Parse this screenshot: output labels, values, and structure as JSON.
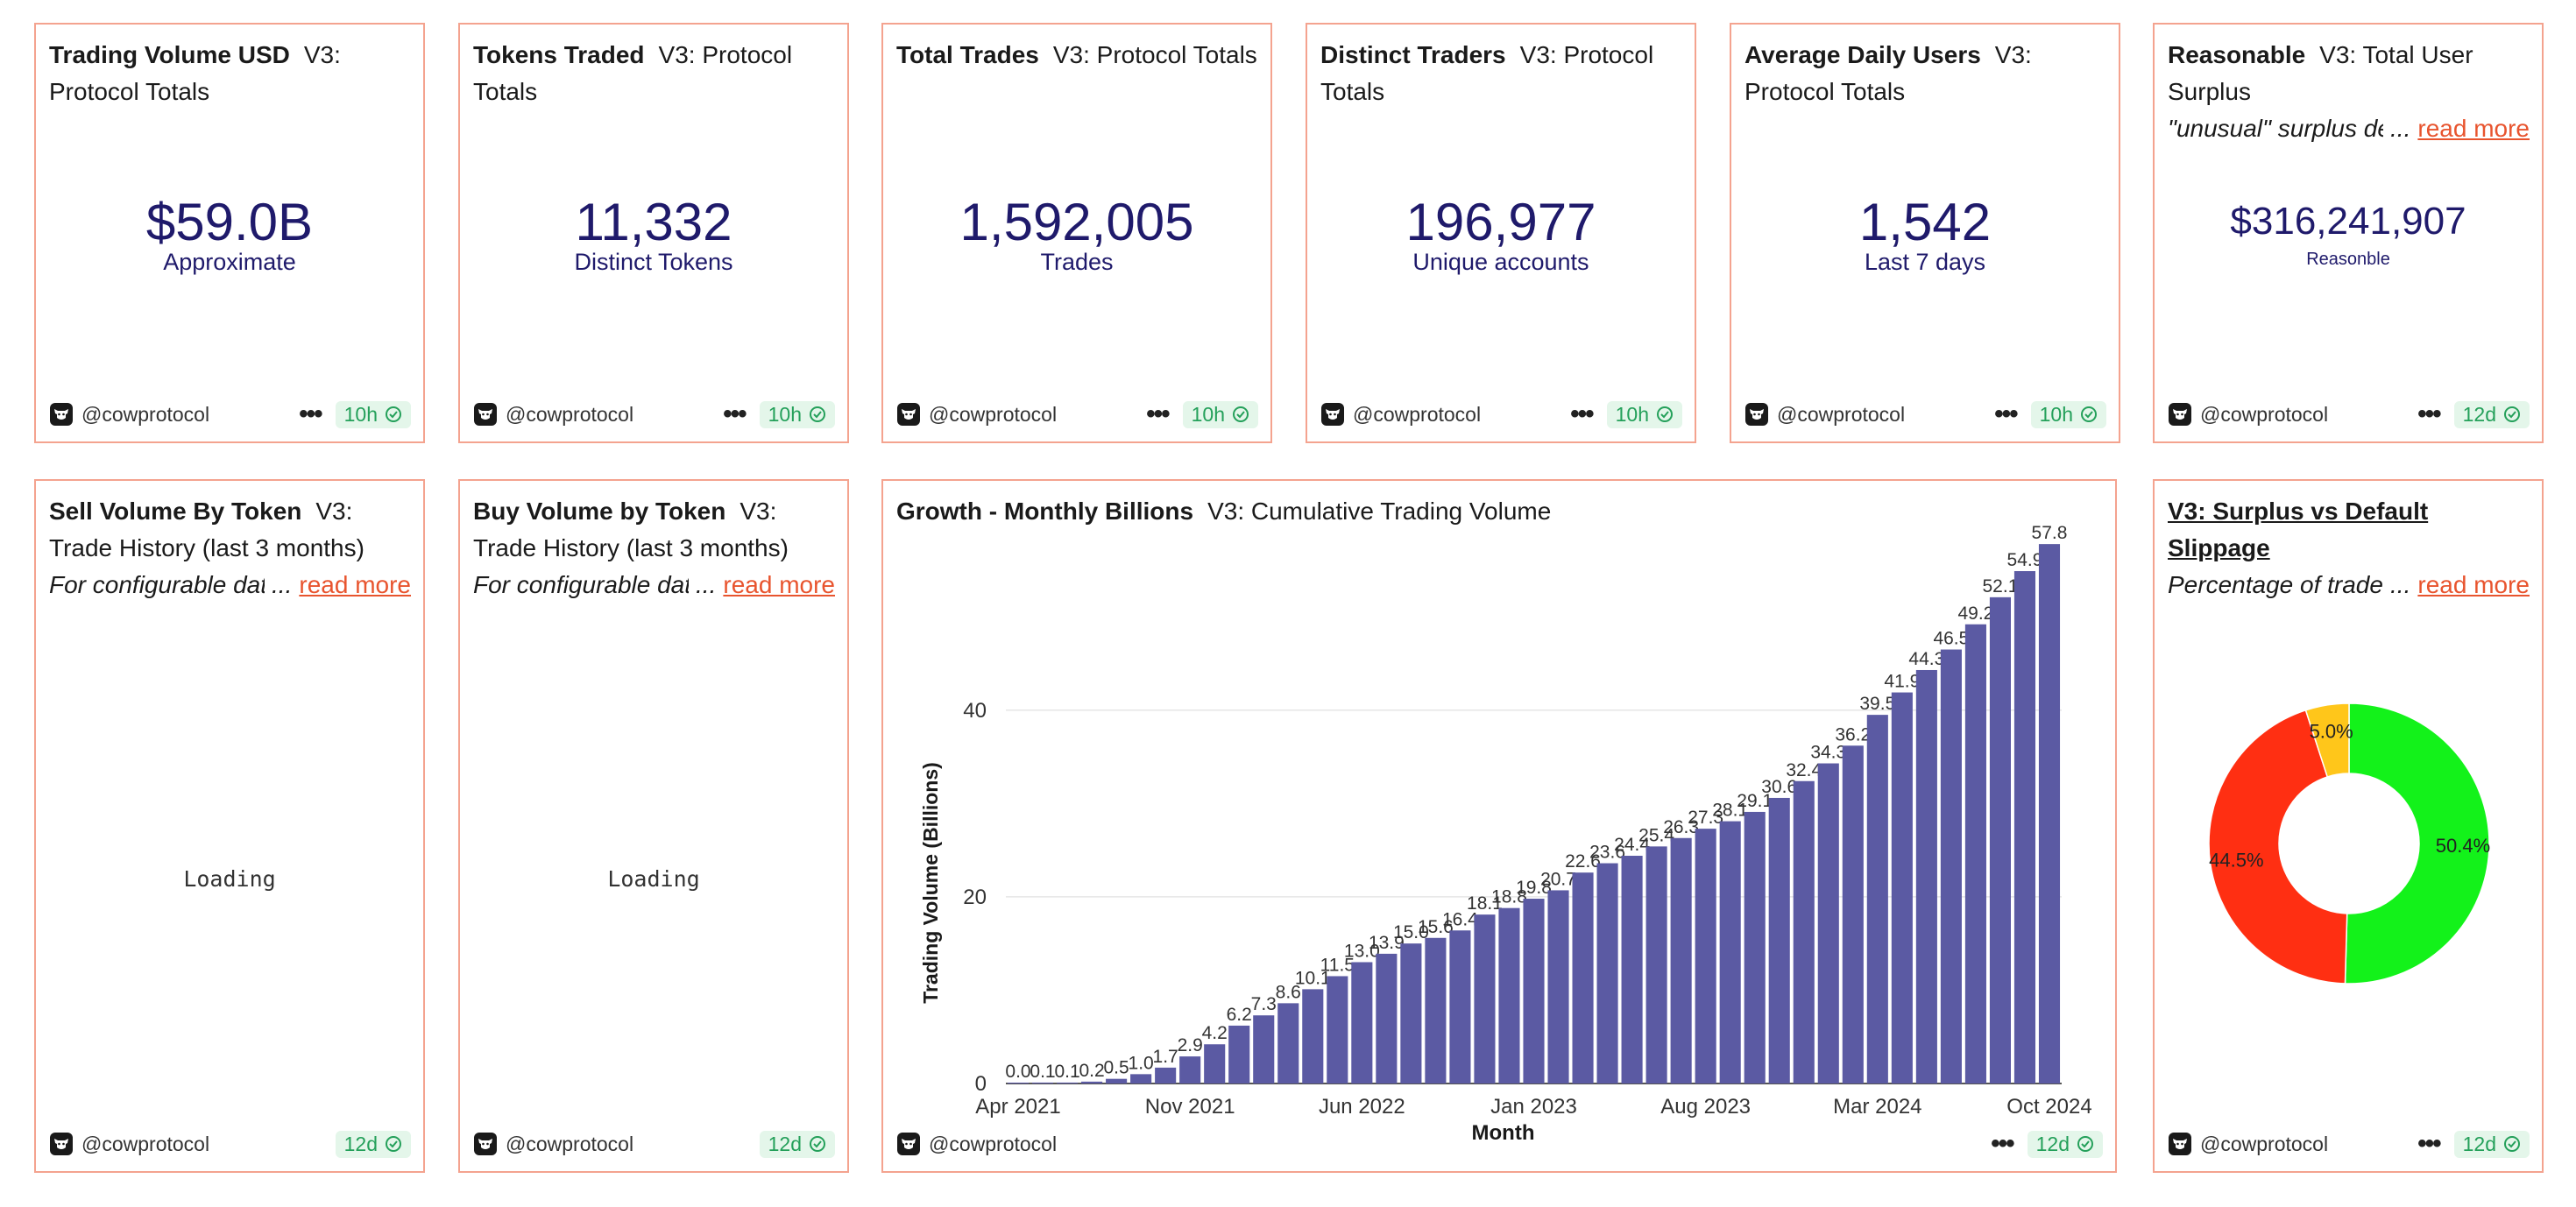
{
  "owner": "@cowprotocol",
  "read_more": "read more",
  "loading_text": "Loading",
  "cards": {
    "trading_volume": {
      "title": "Trading Volume USD",
      "query": "V3: Protocol Totals",
      "value": "$59.0B",
      "label": "Approximate",
      "age": "10h"
    },
    "tokens_traded": {
      "title": "Tokens Traded",
      "query": "V3: Protocol Totals",
      "value": "11,332",
      "label": "Distinct Tokens",
      "age": "10h"
    },
    "total_trades": {
      "title": "Total Trades",
      "query": "V3: Protocol Totals",
      "value": "1,592,005",
      "label": "Trades",
      "age": "10h"
    },
    "distinct_traders": {
      "title": "Distinct Traders",
      "query": "V3: Protocol Totals",
      "value": "196,977",
      "label": "Unique accounts",
      "age": "10h"
    },
    "avg_daily_users": {
      "title": "Average Daily Users",
      "query": "V3: Protocol Totals",
      "value": "1,542",
      "label": "Last 7 days",
      "age": "10h"
    },
    "reasonable": {
      "title": "Reasonable",
      "query": "V3: Total User Surplus",
      "description": "\"unusual\" surplus de",
      "ellipsis": "...",
      "value": "$316,241,907",
      "label": "Reasonble",
      "age": "12d"
    },
    "sell_volume": {
      "title": "Sell Volume By Token",
      "query": "V3: Trade History (last 3 months)",
      "description": "For configurable date",
      "ellipsis": "...",
      "age": "12d"
    },
    "buy_volume": {
      "title": "Buy Volume by Token",
      "query": "V3: Trade History (last 3 months)",
      "description": "For configurable date",
      "ellipsis": "...",
      "age": "12d"
    },
    "growth": {
      "title": "Growth - Monthly Billions",
      "query": "V3: Cumulative Trading Volume",
      "age": "12d"
    },
    "surplus_slippage": {
      "title": "V3: Surplus vs Default Slippage",
      "description": "Percentage of trades",
      "ellipsis": "...",
      "age": "12d"
    }
  },
  "chart_data": [
    {
      "type": "bar",
      "title": "",
      "xlabel": "Month",
      "ylabel": "Trading Volume (Billions)",
      "ylim": [
        0,
        58
      ],
      "yticks": [
        0,
        20,
        40
      ],
      "xticks": [
        "Apr 2021",
        "Nov 2021",
        "Jun 2022",
        "Jan 2023",
        "Aug 2023",
        "Mar 2024",
        "Oct 2024"
      ],
      "xtick_index": [
        0,
        7,
        14,
        21,
        28,
        35,
        42
      ],
      "values": [
        0.0,
        0.1,
        0.1,
        0.2,
        0.5,
        1.0,
        1.7,
        2.9,
        4.2,
        6.2,
        7.3,
        8.6,
        10.1,
        11.5,
        13.0,
        13.9,
        15.0,
        15.6,
        16.4,
        18.1,
        18.8,
        19.8,
        20.7,
        22.6,
        23.6,
        24.4,
        25.4,
        26.3,
        27.3,
        28.1,
        29.1,
        30.6,
        32.4,
        34.3,
        36.2,
        39.5,
        41.9,
        44.3,
        46.5,
        49.2,
        52.1,
        54.9,
        57.8
      ],
      "bar_color": "#5b5aa3",
      "grid": true
    },
    {
      "type": "pie",
      "title": "",
      "labels": [
        "50.4%",
        "44.5%",
        "5.0%"
      ],
      "values": [
        50.4,
        44.5,
        5.0
      ],
      "colors": [
        "#13f21a",
        "#ff2f12",
        "#ffc61a"
      ]
    }
  ]
}
